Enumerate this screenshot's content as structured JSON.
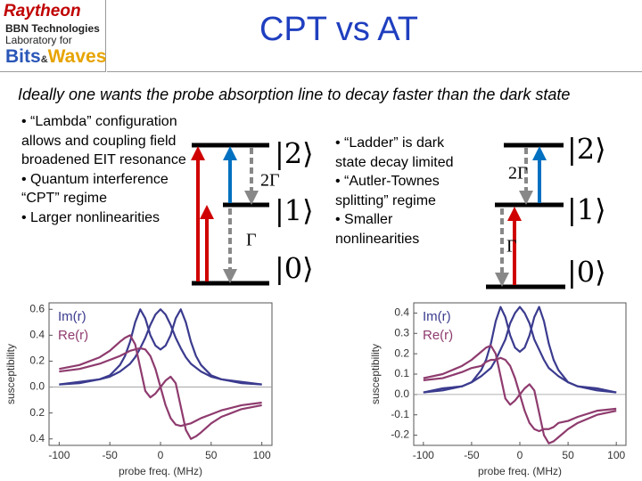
{
  "header": {
    "logo": [
      "Raytheon",
      "BBN Technologies",
      "Laboratory for",
      "Bits",
      "&",
      "Waves"
    ],
    "title": "CPT vs AT"
  },
  "subtitle": "Ideally one wants the probe absorption line to decay faster than the dark state",
  "left_bullets": [
    "“Lambda” configuration allows and coupling field broadened EIT resonance",
    "Quantum interference “CPT” regime",
    "Larger nonlinearities"
  ],
  "right_bullets": [
    "“Ladder” is dark state decay limited",
    "“Autler-Townes splitting” regime",
    "Smaller nonlinearities"
  ],
  "diagrams": {
    "lambda": {
      "levels": [
        "|2⟩",
        "|1⟩",
        "|0⟩"
      ],
      "rates": [
        "2Γ",
        "Γ"
      ]
    },
    "ladder": {
      "levels": [
        "|2⟩",
        "|1⟩",
        "|0⟩"
      ],
      "rates": [
        "2Γ",
        "Γ"
      ]
    }
  },
  "chart_data": [
    {
      "type": "line",
      "xlabel": "probe freq. (MHz)",
      "ylabel": "susceptibility",
      "x": [
        -100,
        -80,
        -60,
        -50,
        -40,
        -35,
        -30,
        -25,
        -20,
        -15,
        -10,
        -5,
        0,
        5,
        10,
        15,
        20,
        25,
        30,
        35,
        40,
        50,
        60,
        80,
        100
      ],
      "series": [
        {
          "name": "Im(r)",
          "color": "#3b3b8f",
          "values": [
            0.02,
            0.03,
            0.06,
            0.09,
            0.17,
            0.24,
            0.35,
            0.5,
            0.6,
            0.53,
            0.4,
            0.32,
            0.29,
            0.32,
            0.4,
            0.53,
            0.6,
            0.5,
            0.35,
            0.24,
            0.17,
            0.09,
            0.06,
            0.03,
            0.02
          ]
        },
        {
          "color": "#3b3b8f",
          "values": [
            0.02,
            0.04,
            0.06,
            0.08,
            0.12,
            0.15,
            0.18,
            0.23,
            0.3,
            0.38,
            0.48,
            0.56,
            0.6,
            0.56,
            0.48,
            0.38,
            0.3,
            0.23,
            0.18,
            0.15,
            0.12,
            0.08,
            0.06,
            0.04,
            0.02
          ]
        },
        {
          "name": "Re(r)",
          "color": "#8e3b6e",
          "values": [
            0.14,
            0.17,
            0.23,
            0.28,
            0.35,
            0.38,
            0.4,
            0.33,
            0.15,
            -0.03,
            -0.08,
            -0.05,
            0,
            0.05,
            0.08,
            0.03,
            -0.15,
            -0.33,
            -0.4,
            -0.38,
            -0.35,
            -0.28,
            -0.23,
            -0.17,
            -0.14
          ]
        },
        {
          "color": "#8e3b6e",
          "values": [
            0.12,
            0.14,
            0.18,
            0.21,
            0.24,
            0.26,
            0.28,
            0.29,
            0.3,
            0.29,
            0.24,
            0.14,
            0,
            -0.14,
            -0.24,
            -0.29,
            -0.3,
            -0.29,
            -0.28,
            -0.26,
            -0.24,
            -0.21,
            -0.18,
            -0.14,
            -0.12
          ]
        }
      ],
      "xlim": [
        -110,
        110
      ],
      "xticks": [
        -100,
        -50,
        0,
        50,
        100
      ],
      "ylim": [
        -0.45,
        0.65
      ],
      "yticks": [
        0.6,
        0.4,
        0.2,
        {
          "value": 0,
          "label": "0.0"
        },
        {
          "value": -0.2,
          "label": "0.2"
        },
        {
          "value": -0.4,
          "label": "0.4"
        }
      ]
    },
    {
      "type": "line",
      "xlabel": "probe freq. (MHz)",
      "ylabel": "susceptibility",
      "x": [
        -100,
        -80,
        -60,
        -50,
        -40,
        -35,
        -30,
        -25,
        -20,
        -15,
        -10,
        -5,
        0,
        5,
        10,
        15,
        20,
        25,
        30,
        35,
        40,
        50,
        60,
        80,
        100
      ],
      "series": [
        {
          "name": "Im(r)",
          "color": "#3b3b8f",
          "values": [
            0.01,
            0.02,
            0.04,
            0.06,
            0.12,
            0.17,
            0.25,
            0.36,
            0.43,
            0.38,
            0.29,
            0.23,
            0.21,
            0.23,
            0.29,
            0.38,
            0.43,
            0.36,
            0.25,
            0.17,
            0.12,
            0.06,
            0.04,
            0.02,
            0.01
          ]
        },
        {
          "color": "#3b3b8f",
          "values": [
            0.01,
            0.03,
            0.04,
            0.06,
            0.09,
            0.11,
            0.13,
            0.17,
            0.22,
            0.27,
            0.35,
            0.4,
            0.43,
            0.4,
            0.35,
            0.27,
            0.22,
            0.17,
            0.13,
            0.11,
            0.09,
            0.06,
            0.04,
            0.03,
            0.01
          ]
        },
        {
          "name": "Re(r)",
          "color": "#8e3b6e",
          "values": [
            0.08,
            0.1,
            0.14,
            0.17,
            0.21,
            0.23,
            0.24,
            0.2,
            0.09,
            -0.02,
            -0.05,
            -0.03,
            0,
            0.03,
            0.05,
            0.02,
            -0.09,
            -0.2,
            -0.24,
            -0.23,
            -0.21,
            -0.17,
            -0.14,
            -0.1,
            -0.08
          ]
        },
        {
          "color": "#8e3b6e",
          "values": [
            0.07,
            0.08,
            0.11,
            0.13,
            0.14,
            0.16,
            0.17,
            0.17,
            0.18,
            0.17,
            0.14,
            0.08,
            0,
            -0.08,
            -0.14,
            -0.17,
            -0.18,
            -0.17,
            -0.17,
            -0.16,
            -0.14,
            -0.13,
            -0.11,
            -0.08,
            -0.07
          ]
        }
      ],
      "xlim": [
        -110,
        110
      ],
      "xticks": [
        -100,
        -50,
        0,
        50,
        100
      ],
      "ylim": [
        -0.25,
        0.45
      ],
      "yticks": [
        0.4,
        0.3,
        0.2,
        0.1,
        {
          "value": 0,
          "label": "0.0"
        },
        -0.1,
        -0.2
      ]
    }
  ]
}
